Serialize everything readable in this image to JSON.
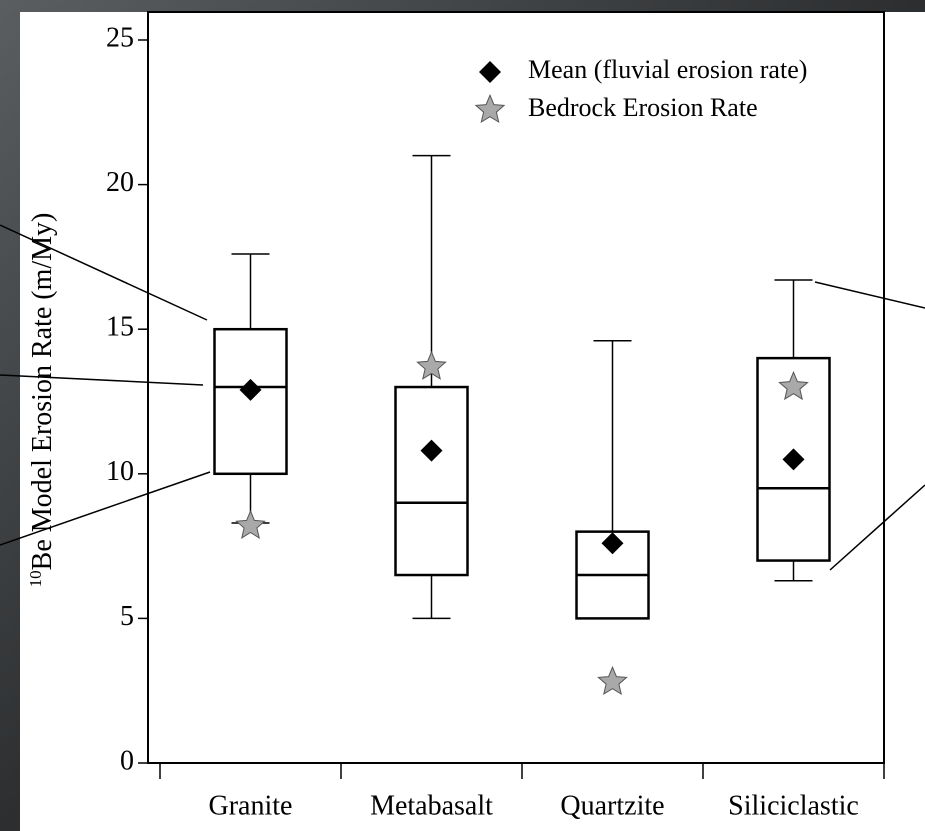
{
  "chart_data": {
    "type": "box",
    "y_label": {
      "superscript": "10",
      "text": "Be Model Erosion Rate (m/My)"
    },
    "categories": [
      "Granite",
      "Metabasalt",
      "Quartzite",
      "Siliciclastic"
    ],
    "boxes": {
      "whisker_low": [
        8.3,
        5,
        5,
        6.3
      ],
      "q1": [
        10,
        6.5,
        5,
        7
      ],
      "median": [
        13,
        9,
        6.5,
        9.5
      ],
      "q3": [
        15,
        13,
        8,
        14
      ],
      "whisker_high": [
        17.6,
        21,
        14.6,
        16.7
      ]
    },
    "series": [
      {
        "name": "Mean (fluvial erosion rate)",
        "color": "#000000",
        "marker": "diamond",
        "values": [
          12.9,
          10.8,
          7.6,
          10.5
        ]
      },
      {
        "name": "Bedrock Erosion Rate",
        "color": "#a9a9a9",
        "marker": "star",
        "values": [
          8.2,
          13.7,
          2.8,
          13.0
        ]
      }
    ],
    "ylim": [
      0,
      25
    ],
    "yticks": [
      0,
      5,
      10,
      15,
      20,
      25
    ]
  }
}
